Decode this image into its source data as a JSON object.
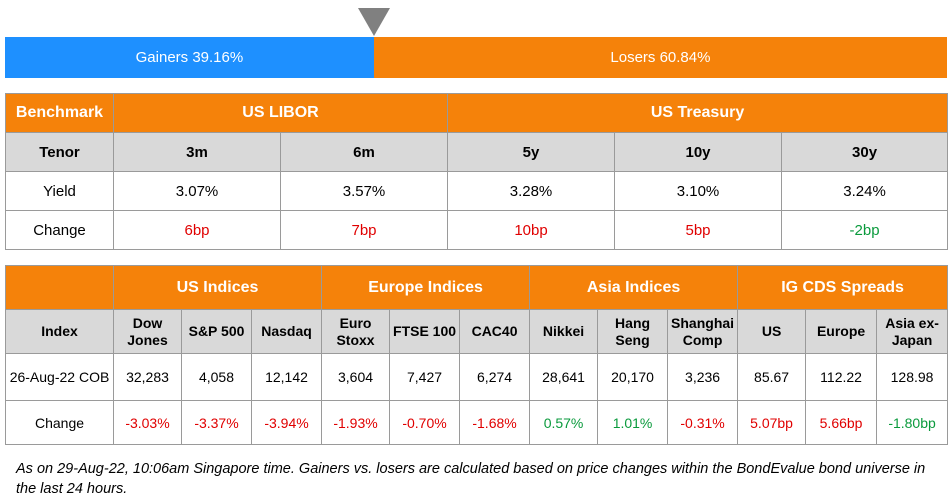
{
  "bar": {
    "gainers_label": "Gainers 39.16%",
    "losers_label": "Losers 60.84%",
    "gainers_pct": 39.16,
    "losers_pct": 60.84
  },
  "rates": {
    "benchmark_label": "Benchmark",
    "libor_label": "US LIBOR",
    "treasury_label": "US Treasury",
    "tenor_label": "Tenor",
    "tenors": [
      "3m",
      "6m",
      "5y",
      "10y",
      "30y"
    ],
    "yield_label": "Yield",
    "yields": [
      "3.07%",
      "3.57%",
      "3.28%",
      "3.10%",
      "3.24%"
    ],
    "change_label": "Change",
    "changes": [
      "6bp",
      "7bp",
      "10bp",
      "5bp",
      "-2bp"
    ]
  },
  "indices": {
    "us_label": "US Indices",
    "europe_label": "Europe Indices",
    "asia_label": "Asia Indices",
    "cds_label": "IG CDS Spreads",
    "index_label": "Index",
    "names": [
      "Dow\nJones",
      "S&P 500",
      "Nasdaq",
      "Euro\nStoxx",
      "FTSE 100",
      "CAC40",
      "Nikkei",
      "Hang\nSeng",
      "Shanghai\nComp",
      "US",
      "Europe",
      "Asia ex-\nJapan"
    ],
    "date_label": "26-Aug-22 COB",
    "values": [
      "32,283",
      "4,058",
      "12,142",
      "3,604",
      "7,427",
      "6,274",
      "28,641",
      "20,170",
      "3,236",
      "85.67",
      "112.22",
      "128.98"
    ],
    "change_label": "Change",
    "changes": [
      "-3.03%",
      "-3.37%",
      "-3.94%",
      "-1.93%",
      "-0.70%",
      "-1.68%",
      "0.57%",
      "1.01%",
      "-0.31%",
      "5.07bp",
      "5.66bp",
      "-1.80bp"
    ]
  },
  "footnote": "As on 29-Aug-22, 10:06am Singapore time. Gainers vs. losers are calculated based on price changes within the BondEvalue bond universe in the last 24 hours.",
  "colors": {
    "orange": "#f5820a",
    "blue": "#1e90ff",
    "red": "#e00000",
    "green": "#0a9a3c",
    "grey": "#d9d9d9"
  }
}
